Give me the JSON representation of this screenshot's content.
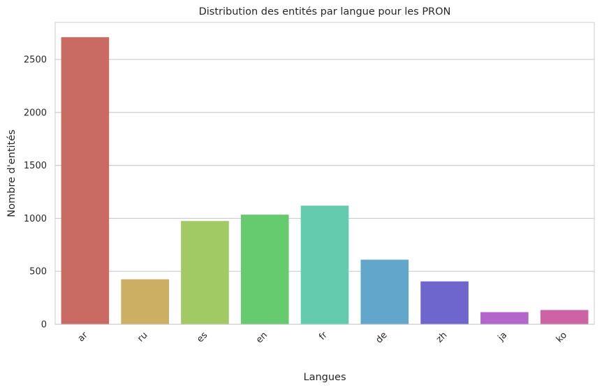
{
  "chart_data": {
    "type": "bar",
    "title": "Distribution des entités par langue pour les PRON",
    "xlabel": "Langues",
    "ylabel": "Nombre d'entités",
    "categories": [
      "ar",
      "ru",
      "es",
      "en",
      "fr",
      "de",
      "zh",
      "ja",
      "ko"
    ],
    "values": [
      2710,
      425,
      975,
      1035,
      1120,
      610,
      405,
      115,
      135
    ],
    "colors": [
      "#c96b63",
      "#ccaf63",
      "#a1ca65",
      "#66cb6e",
      "#65cbaf",
      "#63a6cc",
      "#6e66cd",
      "#b266cc",
      "#cb63a5"
    ],
    "ylim": [
      0,
      2850
    ],
    "yticks": [
      0,
      500,
      1000,
      1500,
      2000,
      2500
    ],
    "grid": "horizontal"
  }
}
